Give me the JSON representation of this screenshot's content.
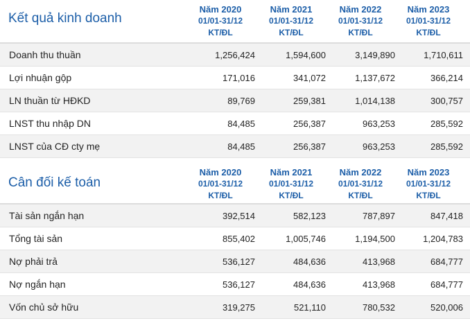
{
  "sections": [
    {
      "title": "Kết quả kinh doanh",
      "columns": [
        {
          "year": "Năm 2020",
          "range": "01/01-31/12",
          "audit": "KT/ĐL"
        },
        {
          "year": "Năm 2021",
          "range": "01/01-31/12",
          "audit": "KT/ĐL"
        },
        {
          "year": "Năm 2022",
          "range": "01/01-31/12",
          "audit": "KT/ĐL"
        },
        {
          "year": "Năm 2023",
          "range": "01/01-31/12",
          "audit": "KT/ĐL"
        }
      ],
      "rows": [
        {
          "label": "Doanh thu thuần",
          "values": [
            "1,256,424",
            "1,594,600",
            "3,149,890",
            "1,710,611"
          ]
        },
        {
          "label": "Lợi nhuận gộp",
          "values": [
            "171,016",
            "341,072",
            "1,137,672",
            "366,214"
          ]
        },
        {
          "label": "LN thuần từ HĐKD",
          "values": [
            "89,769",
            "259,381",
            "1,014,138",
            "300,757"
          ]
        },
        {
          "label": "LNST thu nhập DN",
          "values": [
            "84,485",
            "256,387",
            "963,253",
            "285,592"
          ]
        },
        {
          "label": "LNST của CĐ cty mẹ",
          "values": [
            "84,485",
            "256,387",
            "963,253",
            "285,592"
          ]
        }
      ]
    },
    {
      "title": "Cân đối kế toán",
      "columns": [
        {
          "year": "Năm 2020",
          "range": "01/01-31/12",
          "audit": "KT/ĐL"
        },
        {
          "year": "Năm 2021",
          "range": "01/01-31/12",
          "audit": "KT/ĐL"
        },
        {
          "year": "Năm 2022",
          "range": "01/01-31/12",
          "audit": "KT/ĐL"
        },
        {
          "year": "Năm 2023",
          "range": "01/01-31/12",
          "audit": "KT/ĐL"
        }
      ],
      "rows": [
        {
          "label": "Tài sản ngắn hạn",
          "values": [
            "392,514",
            "582,123",
            "787,897",
            "847,418"
          ]
        },
        {
          "label": "Tổng tài sản",
          "values": [
            "855,402",
            "1,005,746",
            "1,194,500",
            "1,204,783"
          ]
        },
        {
          "label": "Nợ phải trả",
          "values": [
            "536,127",
            "484,636",
            "413,968",
            "684,777"
          ]
        },
        {
          "label": "Nợ ngắn hạn",
          "values": [
            "536,127",
            "484,636",
            "413,968",
            "684,777"
          ]
        },
        {
          "label": "Vốn chủ sở hữu",
          "values": [
            "319,275",
            "521,110",
            "780,532",
            "520,006"
          ]
        }
      ]
    }
  ]
}
